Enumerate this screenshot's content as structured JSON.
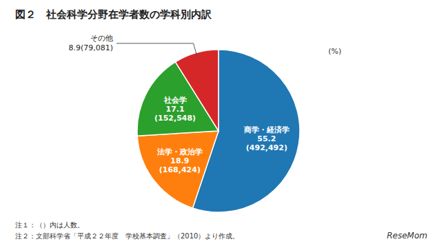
{
  "chart_data": {
    "type": "pie",
    "title": "図２　社会科学分野在学者数の学科別内訳",
    "categories": [
      "商学・経済学",
      "法学・政治学",
      "社会学",
      "その他"
    ],
    "values": [
      55.2,
      18.9,
      17.1,
      8.9
    ],
    "count_labels": [
      "(492,492)",
      "(168,424)",
      "(152,548)",
      "(79,081)"
    ],
    "data_labels": true,
    "annotations": [
      "(%)",
      "注１：（）内は人数。",
      "注２：文部科学省「平成２２年度　学校基本調査」（2010）より作成。",
      "ReseMom"
    ]
  }
}
